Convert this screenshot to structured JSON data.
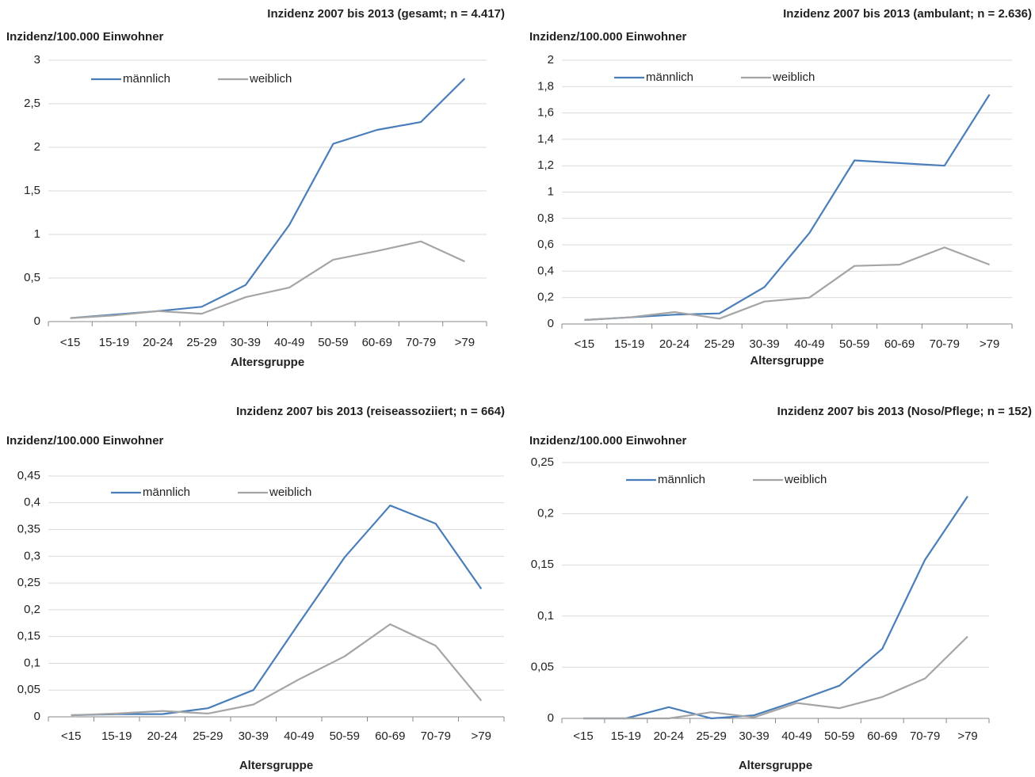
{
  "chart_data": [
    {
      "type": "line",
      "title": "Inzidenz 2007 bis 2013 (gesamt; n = 4.417)",
      "y_label": "Inzidenz/100.000 Einwohner",
      "x_label": "Altersgruppe",
      "categories": [
        "<15",
        "15-19",
        "20-24",
        "25-29",
        "30-39",
        "40-49",
        "50-59",
        "60-69",
        "70-79",
        ">79"
      ],
      "series": [
        {
          "name": "männlich",
          "color": "#4a7ebb",
          "values": [
            0.04,
            0.08,
            0.12,
            0.17,
            0.42,
            1.11,
            2.04,
            2.2,
            2.29,
            2.79
          ]
        },
        {
          "name": "weiblich",
          "color": "#a5a5a5",
          "values": [
            0.04,
            0.07,
            0.12,
            0.09,
            0.28,
            0.39,
            0.71,
            0.81,
            0.92,
            0.69
          ]
        }
      ],
      "ylim": [
        0,
        3
      ],
      "yticks": [
        0,
        {
          "value": 0.5,
          "label": "0,5"
        },
        1,
        {
          "value": 1.5,
          "label": "1,5"
        },
        2,
        {
          "value": 2.5,
          "label": "2,5"
        },
        3
      ],
      "grid": true,
      "legend": "upper left"
    },
    {
      "type": "line",
      "title": "Inzidenz 2007 bis 2013 (ambulant; n = 2.636)",
      "y_label": "Inzidenz/100.000 Einwohner",
      "x_label": "Altersgruppe",
      "categories": [
        "<15",
        "15-19",
        "20-24",
        "25-29",
        "30-39",
        "40-49",
        "50-59",
        "60-69",
        "70-79",
        ">79"
      ],
      "series": [
        {
          "name": "männlich",
          "color": "#4a7ebb",
          "values": [
            0.03,
            0.05,
            0.07,
            0.08,
            0.28,
            0.69,
            1.24,
            1.22,
            1.2,
            1.74
          ]
        },
        {
          "name": "weiblich",
          "color": "#a5a5a5",
          "values": [
            0.03,
            0.05,
            0.09,
            0.04,
            0.17,
            0.2,
            0.44,
            0.45,
            0.58,
            0.45
          ]
        }
      ],
      "ylim": [
        0,
        2
      ],
      "yticks": [
        0,
        {
          "value": 0.2,
          "label": "0,2"
        },
        {
          "value": 0.4,
          "label": "0,4"
        },
        {
          "value": 0.6,
          "label": "0,6"
        },
        {
          "value": 0.8,
          "label": "0,8"
        },
        1,
        {
          "value": 1.2,
          "label": "1,2"
        },
        {
          "value": 1.4,
          "label": "1,4"
        },
        {
          "value": 1.6,
          "label": "1,6"
        },
        {
          "value": 1.8,
          "label": "1,8"
        },
        2
      ],
      "grid": true,
      "legend": "upper left"
    },
    {
      "type": "line",
      "title": "Inzidenz 2007 bis 2013 (reiseassoziiert; n = 664)",
      "y_label": "Inzidenz/100.000 Einwohner",
      "x_label": "Altersgruppe",
      "categories": [
        "<15",
        "15-19",
        "20-24",
        "25-29",
        "30-39",
        "40-49",
        "50-59",
        "60-69",
        "70-79",
        ">79"
      ],
      "series": [
        {
          "name": "männlich",
          "color": "#4a7ebb",
          "values": [
            0.003,
            0.005,
            0.005,
            0.016,
            0.05,
            0.175,
            0.298,
            0.395,
            0.361,
            0.239
          ]
        },
        {
          "name": "weiblich",
          "color": "#a5a5a5",
          "values": [
            0.003,
            0.006,
            0.011,
            0.006,
            0.023,
            0.07,
            0.113,
            0.173,
            0.133,
            0.03
          ]
        }
      ],
      "ylim": [
        0,
        0.45
      ],
      "yticks": [
        0,
        {
          "value": 0.05,
          "label": "0,05"
        },
        {
          "value": 0.1,
          "label": "0,1"
        },
        {
          "value": 0.15,
          "label": "0,15"
        },
        {
          "value": 0.2,
          "label": "0,2"
        },
        {
          "value": 0.25,
          "label": "0,25"
        },
        {
          "value": 0.3,
          "label": "0,3"
        },
        {
          "value": 0.35,
          "label": "0,35"
        },
        {
          "value": 0.4,
          "label": "0,4"
        },
        {
          "value": 0.45,
          "label": "0,45"
        }
      ],
      "grid": true,
      "legend": "upper left"
    },
    {
      "type": "line",
      "title": "Inzidenz 2007 bis 2013 (Noso/Pflege; n = 152)",
      "y_label": "Inzidenz/100.000 Einwohner",
      "x_label": "Altersgruppe",
      "categories": [
        "<15",
        "15-19",
        "20-24",
        "25-29",
        "30-39",
        "40-49",
        "50-59",
        "60-69",
        "70-79",
        ">79"
      ],
      "series": [
        {
          "name": "männlich",
          "color": "#4a7ebb",
          "values": [
            0,
            0,
            0.011,
            0,
            0.003,
            0.017,
            0.032,
            0.068,
            0.155,
            0.217
          ]
        },
        {
          "name": "weiblich",
          "color": "#a5a5a5",
          "values": [
            0,
            0,
            0,
            0.006,
            0.001,
            0.015,
            0.01,
            0.021,
            0.039,
            0.08
          ]
        }
      ],
      "ylim": [
        0,
        0.25
      ],
      "yticks": [
        0,
        {
          "value": 0.05,
          "label": "0,05"
        },
        {
          "value": 0.1,
          "label": "0,1"
        },
        {
          "value": 0.15,
          "label": "0,15"
        },
        {
          "value": 0.2,
          "label": "0,2"
        },
        {
          "value": 0.25,
          "label": "0,25"
        }
      ],
      "grid": true,
      "legend": "upper left"
    }
  ]
}
